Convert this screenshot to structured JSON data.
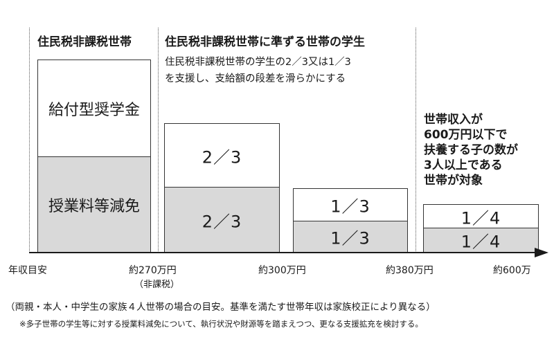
{
  "sections": {
    "left_heading": "住民税非課税世帯",
    "middle_heading": "住民税非課税世帯に準ずる世帯の学生",
    "middle_desc_line1": "住民税非課税世帯の学生の2／3又は1／3",
    "middle_desc_line2": "を支援し、支給額の段差を滑らかにする",
    "right_heading_lines": [
      "世帯収入が",
      "600万円以下で",
      "扶養する子の数が",
      "3人以上である",
      "世帯が対象"
    ]
  },
  "blocks": {
    "b1": {
      "scholarship": "給付型奨学金",
      "tuition": "授業料等減免"
    },
    "b2": {
      "scholarship": "2／3",
      "tuition": "2／3"
    },
    "b3": {
      "scholarship": "1／3",
      "tuition": "1／3"
    },
    "b4": {
      "scholarship": "1／4",
      "tuition": "1／4"
    }
  },
  "axis": {
    "origin_label": "年収目安",
    "ticks": [
      "約270万円",
      "約300万円",
      "約380万円",
      "約600万"
    ],
    "tick1_sub": "（非課税）"
  },
  "notes": {
    "main": "（両親・本人・中学生の家族４人世帯の場合の目安。基準を満たす世帯年収は家族校正により異なる）",
    "footnote": "※多子世帯の学生等に対する授業料減免について、執行状況や財源等を踏まえつつ、更なる支援拡充を検討する。"
  },
  "colors": {
    "gray_fill": "#d9d9d9",
    "line": "#333333",
    "arrow": "#1a1a1a"
  }
}
